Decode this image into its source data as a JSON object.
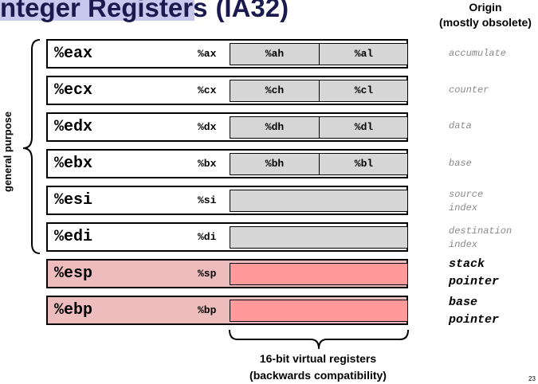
{
  "title": {
    "main": "nteger Registers",
    "suffix": "(IA32)"
  },
  "origin_header": {
    "line1": "Origin",
    "line2": "(mostly obsolete)"
  },
  "side_label": "general purpose",
  "registers": [
    {
      "reg32": "%eax",
      "reg16": "%ax",
      "high": "%ah",
      "low": "%al",
      "origin": [
        "accumulate"
      ]
    },
    {
      "reg32": "%ecx",
      "reg16": "%cx",
      "high": "%ch",
      "low": "%cl",
      "origin": [
        "counter"
      ]
    },
    {
      "reg32": "%edx",
      "reg16": "%dx",
      "high": "%dh",
      "low": "%dl",
      "origin": [
        "data"
      ]
    },
    {
      "reg32": "%ebx",
      "reg16": "%bx",
      "high": "%bh",
      "low": "%bl",
      "origin": [
        "base"
      ]
    },
    {
      "reg32": "%esi",
      "reg16": "%si",
      "origin": [
        "source",
        "index"
      ]
    },
    {
      "reg32": "%edi",
      "reg16": "%di",
      "origin": [
        "destination",
        "index"
      ]
    },
    {
      "reg32": "%esp",
      "reg16": "%sp",
      "origin": [
        "stack",
        "pointer"
      ]
    },
    {
      "reg32": "%ebp",
      "reg16": "%bp",
      "origin": [
        "base",
        "pointer"
      ]
    }
  ],
  "caption": {
    "line1": "16-bit virtual registers",
    "line2": "(backwards compatibility)"
  },
  "page_number": "23",
  "colors": {
    "title_bg": "#c8c8ee",
    "gray_cell": "#d6d6d6",
    "pink_row": "#edbcbc",
    "pink_cell": "#ff9a9a"
  }
}
